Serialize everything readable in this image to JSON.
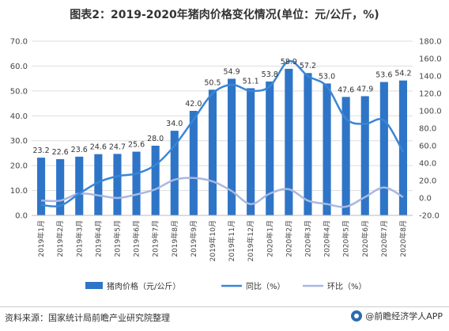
{
  "title": "图表2：2019-2020年猪肉价格变化情况(单位：元/公斤，%)",
  "footer": {
    "source": "资料来源：国家统计局前瞻产业研究院整理",
    "brand": "@前瞻经济学人APP"
  },
  "colors": {
    "bar": "#2e75c7",
    "yoy": "#3a86d6",
    "mom": "#a9b8e0",
    "grid": "#dddddd"
  },
  "chart_data": {
    "type": "bar",
    "categories": [
      "2019年1月",
      "2019年2月",
      "2019年3月",
      "2019年4月",
      "2019年5月",
      "2019年6月",
      "2019年7月",
      "2019年8月",
      "2019年9月",
      "2019年10月",
      "2019年11月",
      "2019年12月",
      "2020年1月",
      "2020年2月",
      "2020年3月",
      "2020年4月",
      "2020年5月",
      "2020年6月",
      "2020年7月",
      "2020年8月"
    ],
    "y_left": {
      "ticks": [
        "0.0",
        "10.0",
        "20.0",
        "30.0",
        "40.0",
        "50.0",
        "60.0",
        "70.0"
      ],
      "ylim": [
        0,
        70
      ]
    },
    "y_right": {
      "ticks": [
        "-20.0",
        "0.0",
        "20.0",
        "40.0",
        "60.0",
        "80.0",
        "100.0",
        "120.0",
        "140.0",
        "160.0",
        "180.0"
      ],
      "ylim": [
        -20,
        180
      ]
    },
    "series": [
      {
        "name": "猪肉价格（元/公斤）",
        "type": "bar",
        "axis": "left",
        "values": [
          23.2,
          22.6,
          23.6,
          24.6,
          24.7,
          25.6,
          28.0,
          34.0,
          42.0,
          50.5,
          54.9,
          51.1,
          53.8,
          58.9,
          57.2,
          53.0,
          47.6,
          47.9,
          53.6,
          54.2
        ],
        "labels": [
          "23.2",
          "22.6",
          "23.6",
          "24.6",
          "24.7",
          "25.6",
          "28.0",
          "34.0",
          "42.0",
          "50.5",
          "54.9",
          "51.1",
          "53.8",
          "58.9",
          "57.2",
          "53.0",
          "47.6",
          "47.9",
          "53.6",
          "54.2"
        ]
      },
      {
        "name": "同比（%）",
        "type": "line",
        "axis": "right",
        "values": [
          -8,
          -9,
          5,
          18,
          25,
          28,
          38,
          60,
          90,
          120,
          130,
          123,
          128,
          157,
          140,
          128,
          91,
          85,
          89,
          53
        ]
      },
      {
        "name": "环比（%）",
        "type": "line",
        "axis": "right",
        "values": [
          -3,
          -3,
          5,
          3,
          0,
          4,
          10,
          21,
          23,
          19,
          8,
          -7,
          5,
          10,
          -3,
          -7,
          -10,
          1,
          12,
          1
        ]
      }
    ],
    "legend": "bottom"
  }
}
